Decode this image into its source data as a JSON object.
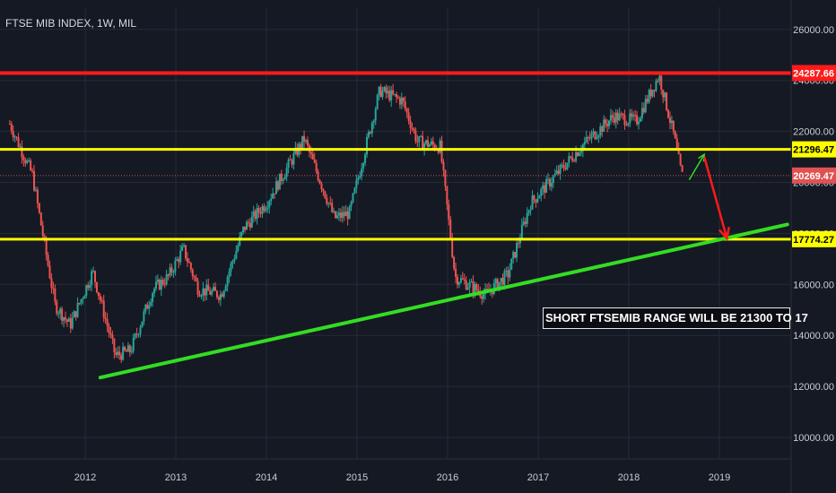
{
  "chart_title": "FTSE MIB INDEX, 1W, MIL",
  "colors": {
    "background": "#151924",
    "grid": "#262b38",
    "up_candle": "#26a69a",
    "down_candle": "#ef5350",
    "resistance": "#ff1a1a",
    "support": "#ffff00",
    "trendline": "#33dd22",
    "current_price": "#e05252"
  },
  "annotation": "SHORT FTSEMIB RANGE WILL BE 21300 TO 17",
  "chart_data": {
    "type": "candlestick",
    "title": "FTSE MIB INDEX, 1W, MIL",
    "x_range": [
      "2011-03",
      "2019-10"
    ],
    "ylim": [
      9200,
      27600
    ],
    "y_ticks": [
      "10000.00",
      "12000.00",
      "14000.00",
      "16000.00",
      "18000.00",
      "20000.00",
      "22000.00",
      "24000.00",
      "26000.00"
    ],
    "x_ticks": [
      "2012",
      "2013",
      "2014",
      "2015",
      "2016",
      "2017",
      "2018",
      "2019"
    ],
    "grid": true,
    "price_axis": "right",
    "series_close_path": [
      {
        "date": "2011-03",
        "close": 22300
      },
      {
        "date": "2011-06",
        "close": 20300
      },
      {
        "date": "2011-09",
        "close": 15200
      },
      {
        "date": "2011-11",
        "close": 14400
      },
      {
        "date": "2012-02",
        "close": 16500
      },
      {
        "date": "2012-05",
        "close": 13200
      },
      {
        "date": "2012-07",
        "close": 13400
      },
      {
        "date": "2012-10",
        "close": 15800
      },
      {
        "date": "2012-12",
        "close": 16300
      },
      {
        "date": "2013-02",
        "close": 17400
      },
      {
        "date": "2013-04",
        "close": 15800
      },
      {
        "date": "2013-07",
        "close": 15600
      },
      {
        "date": "2013-10",
        "close": 18200
      },
      {
        "date": "2014-01",
        "close": 19200
      },
      {
        "date": "2014-06",
        "close": 21700
      },
      {
        "date": "2014-10",
        "close": 18600
      },
      {
        "date": "2014-12",
        "close": 18800
      },
      {
        "date": "2015-04",
        "close": 23600
      },
      {
        "date": "2015-07",
        "close": 23200
      },
      {
        "date": "2015-09",
        "close": 21600
      },
      {
        "date": "2015-12",
        "close": 21400
      },
      {
        "date": "2016-02",
        "close": 16300
      },
      {
        "date": "2016-06",
        "close": 15600
      },
      {
        "date": "2016-09",
        "close": 16400
      },
      {
        "date": "2016-12",
        "close": 19200
      },
      {
        "date": "2017-04",
        "close": 20500
      },
      {
        "date": "2017-07",
        "close": 21500
      },
      {
        "date": "2017-11",
        "close": 22600
      },
      {
        "date": "2018-02",
        "close": 22400
      },
      {
        "date": "2018-05",
        "close": 24200
      },
      {
        "date": "2018-07",
        "close": 21800
      },
      {
        "date": "2018-08",
        "close": 20269
      }
    ],
    "horizontal_levels": [
      {
        "value": 24287.66,
        "label": "24287.66",
        "color": "#ff1a1a",
        "style": "solid"
      },
      {
        "value": 21296.47,
        "label": "21296.47",
        "color": "#ffff00",
        "style": "solid"
      },
      {
        "value": 20269.47,
        "label": "20269.47",
        "color": "#e05252",
        "style": "dotted"
      },
      {
        "value": 17774.27,
        "label": "17774.27",
        "color": "#ffff00",
        "style": "solid"
      }
    ],
    "trendline": {
      "from": {
        "date": "2012-03",
        "value": 12350
      },
      "to": {
        "date": "2019-10",
        "value": 18350
      },
      "color": "#33dd22"
    },
    "arrows": [
      {
        "from": {
          "date": "2018-09",
          "value": 20100
        },
        "to": {
          "date": "2018-11",
          "value": 21100
        },
        "color": "#33dd22"
      },
      {
        "from": {
          "date": "2018-11",
          "value": 21000
        },
        "to": {
          "date": "2019-02",
          "value": 17800
        },
        "color": "#ff1a1a"
      }
    ]
  }
}
